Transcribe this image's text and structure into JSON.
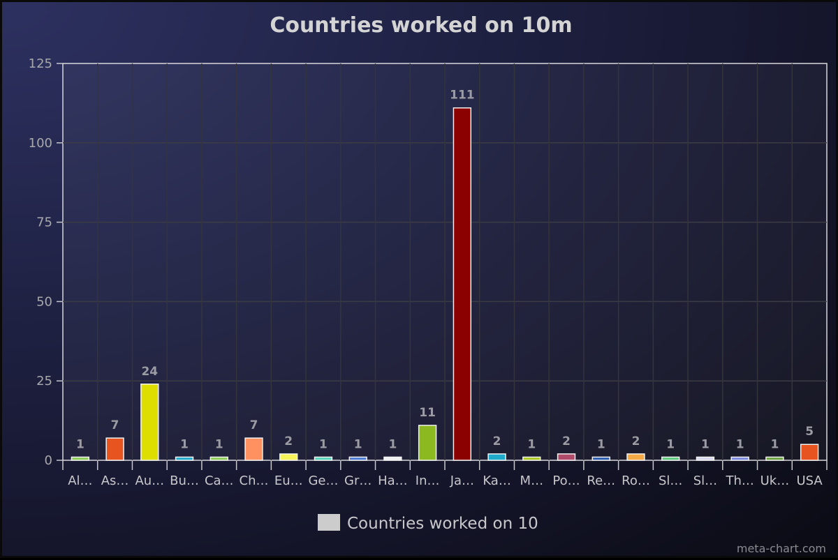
{
  "chart_data": {
    "type": "bar",
    "title": "Countries worked on 10m",
    "xlabel": "",
    "ylabel": "",
    "ylim": [
      0,
      125
    ],
    "yticks": [
      0,
      25,
      50,
      75,
      100,
      125
    ],
    "grid": true,
    "legend_position": "bottom",
    "categories": [
      "Al…",
      "As…",
      "Au…",
      "Bu…",
      "Ca…",
      "Ch…",
      "Eu…",
      "Ge…",
      "Gr…",
      "Ha…",
      "In…",
      "Ja…",
      "Ka…",
      "M…",
      "Po…",
      "Re…",
      "Ro…",
      "Sl…",
      "Sl…",
      "Th…",
      "Uk…",
      "USA"
    ],
    "series": [
      {
        "name": "Countries worked on 10",
        "values": [
          1,
          7,
          24,
          1,
          1,
          7,
          2,
          1,
          1,
          1,
          11,
          111,
          2,
          1,
          2,
          1,
          2,
          1,
          1,
          1,
          1,
          5
        ],
        "colors": [
          "#8ccc55",
          "#e8541f",
          "#dede00",
          "#1faacc",
          "#8ccc55",
          "#ff9060",
          "#f7f45a",
          "#56d4b8",
          "#4a78d4",
          "#f0f0f0",
          "#8cb820",
          "#8b0000",
          "#1faacc",
          "#a8c820",
          "#b04a6a",
          "#2a5ab0",
          "#f4aa44",
          "#5ac87a",
          "#d8d8f0",
          "#7a88e0",
          "#6aa040",
          "#e8541f"
        ]
      }
    ],
    "legend_swatch_color": "#cccccc"
  },
  "credit": "meta-chart.com"
}
